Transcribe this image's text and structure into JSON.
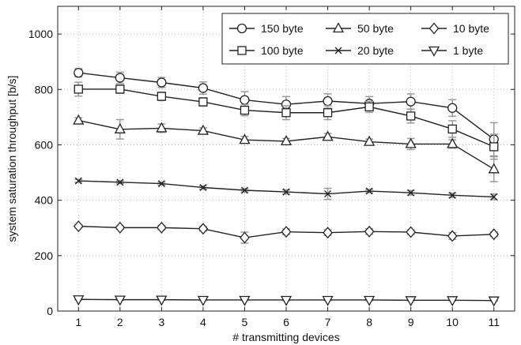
{
  "chart_data": {
    "type": "line",
    "xlabel": "# transmitting devices",
    "ylabel": "system saturation throughput [b/s]",
    "x": [
      1,
      2,
      3,
      4,
      5,
      6,
      7,
      8,
      9,
      10,
      11
    ],
    "xlim": [
      0.5,
      11.5
    ],
    "ylim": [
      0,
      1100
    ],
    "xticks": [
      1,
      2,
      3,
      4,
      5,
      6,
      7,
      8,
      9,
      10,
      11
    ],
    "yticks": [
      0,
      200,
      400,
      600,
      800,
      1000
    ],
    "grid": true,
    "legend_position": "top-right",
    "series": [
      {
        "name": "150 byte",
        "marker": "circle",
        "values": [
          860,
          842,
          825,
          805,
          762,
          746,
          758,
          749,
          756,
          733,
          620
        ],
        "errors": [
          15,
          20,
          18,
          22,
          30,
          28,
          26,
          25,
          28,
          30,
          60
        ]
      },
      {
        "name": "50 byte",
        "marker": "triangle-up",
        "values": [
          688,
          656,
          660,
          651,
          618,
          613,
          629,
          611,
          603,
          603,
          512
        ],
        "errors": [
          10,
          35,
          15,
          10,
          12,
          10,
          12,
          10,
          20,
          15,
          45
        ]
      },
      {
        "name": "10 byte",
        "marker": "diamond",
        "values": [
          306,
          301,
          301,
          297,
          265,
          286,
          283,
          287,
          285,
          271,
          277
        ],
        "errors": [
          5,
          6,
          8,
          8,
          20,
          10,
          10,
          10,
          8,
          12,
          8
        ]
      },
      {
        "name": "100 byte",
        "marker": "square",
        "values": [
          801,
          801,
          775,
          755,
          725,
          716,
          716,
          737,
          704,
          657,
          593
        ],
        "errors": [
          25,
          15,
          15,
          15,
          20,
          25,
          25,
          20,
          25,
          30,
          45
        ]
      },
      {
        "name": "20 byte",
        "marker": "x",
        "values": [
          470,
          465,
          460,
          446,
          436,
          430,
          423,
          433,
          427,
          418,
          412
        ],
        "errors": [
          5,
          5,
          5,
          6,
          6,
          8,
          20,
          6,
          8,
          8,
          10
        ]
      },
      {
        "name": "1 byte",
        "marker": "triangle-down",
        "values": [
          42,
          41,
          41,
          40,
          40,
          40,
          40,
          40,
          39,
          39,
          38
        ],
        "errors": [
          2,
          2,
          2,
          2,
          2,
          2,
          2,
          2,
          2,
          2,
          2
        ]
      }
    ]
  }
}
